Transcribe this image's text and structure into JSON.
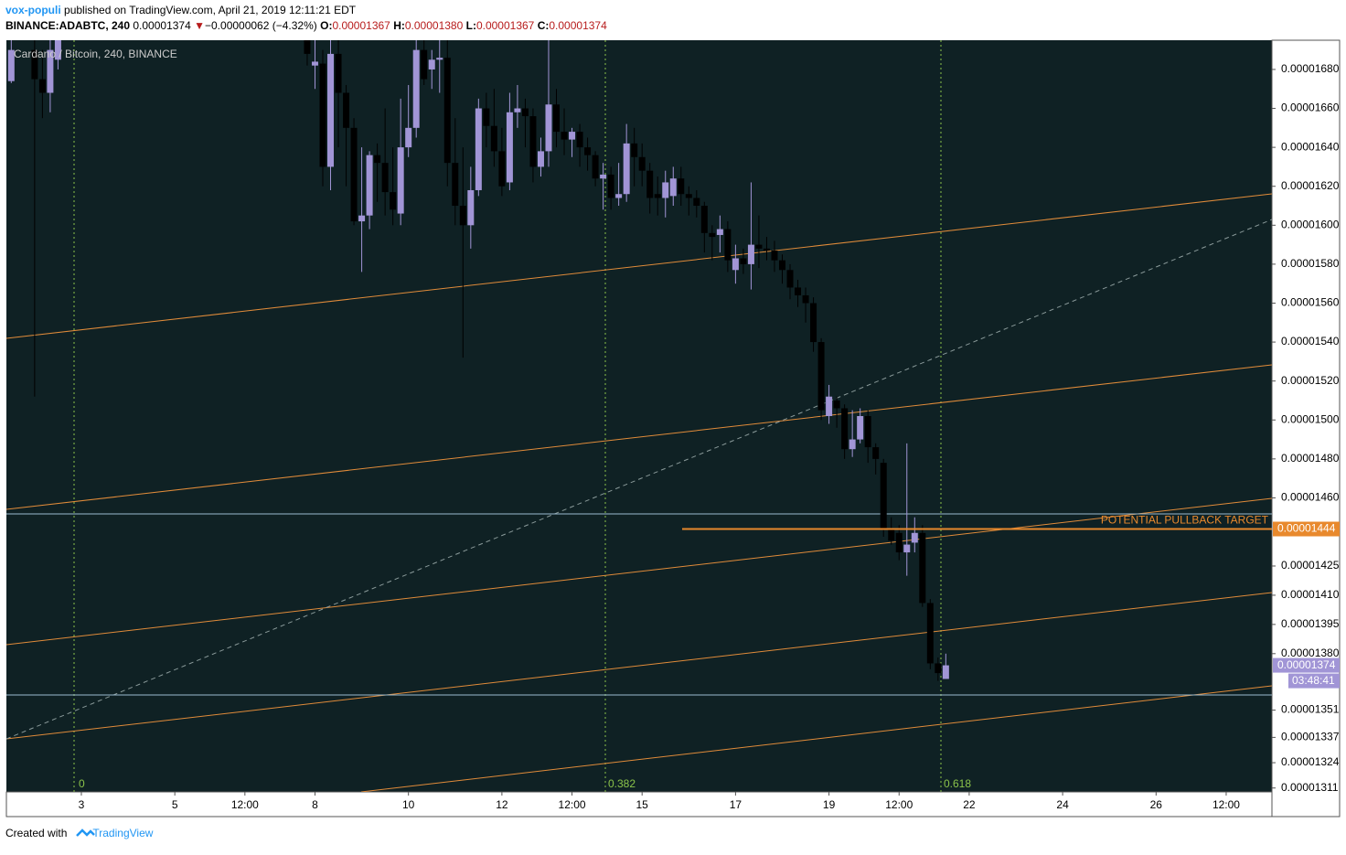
{
  "header": {
    "author": "vox-populi",
    "published": "published on TradingView.com, April 21, 2019 12:11:21 EDT",
    "symbol": "BINANCE:ADABTC, 240",
    "last": "0.00001374",
    "arrow": "▼",
    "change": "−0.00000062 (−4.32%)",
    "ohlc": [
      {
        "label": "O:",
        "value": "0.00001367"
      },
      {
        "label": "H:",
        "value": "0.00001380"
      },
      {
        "label": "L:",
        "value": "0.00001367"
      },
      {
        "label": "C:",
        "value": "0.00001374"
      }
    ]
  },
  "footer": {
    "created": "Created with",
    "brand": "TradingView"
  },
  "chart_data": {
    "type": "candlestick",
    "legend": "Cardano / Bitcoin, 240, BINANCE",
    "up_color": "#a195d6",
    "down_color": "#000000",
    "background": "#0f2124",
    "xlim": [
      9.5,
      659.5
    ],
    "xticks": [
      {
        "value": 48,
        "label": "3"
      },
      {
        "value": 96,
        "label": "5"
      },
      {
        "value": 132,
        "label": "12:00"
      },
      {
        "value": 168,
        "label": "8"
      },
      {
        "value": 216,
        "label": "10"
      },
      {
        "value": 264,
        "label": "12"
      },
      {
        "value": 300,
        "label": "12:00"
      },
      {
        "value": 336,
        "label": "15"
      },
      {
        "value": 384,
        "label": "17"
      },
      {
        "value": 432,
        "label": "19"
      },
      {
        "value": 468,
        "label": "12:00"
      },
      {
        "value": 504,
        "label": "22"
      },
      {
        "value": 552,
        "label": "24"
      },
      {
        "value": 600,
        "label": "26"
      },
      {
        "value": 636,
        "label": "12:00"
      }
    ],
    "ylim": [
      1.309e-05,
      1.695e-05
    ],
    "yticks": [
      {
        "value": 1.68e-05,
        "label": "0.00001680"
      },
      {
        "value": 1.66e-05,
        "label": "0.00001660"
      },
      {
        "value": 1.64e-05,
        "label": "0.00001640"
      },
      {
        "value": 1.62e-05,
        "label": "0.00001620"
      },
      {
        "value": 1.6e-05,
        "label": "0.00001600"
      },
      {
        "value": 1.58e-05,
        "label": "0.00001580"
      },
      {
        "value": 1.56e-05,
        "label": "0.00001560"
      },
      {
        "value": 1.54e-05,
        "label": "0.00001540"
      },
      {
        "value": 1.52e-05,
        "label": "0.00001520"
      },
      {
        "value": 1.5e-05,
        "label": "0.00001500"
      },
      {
        "value": 1.48e-05,
        "label": "0.00001480"
      },
      {
        "value": 1.46e-05,
        "label": "0.00001460"
      },
      {
        "value": 1.425e-05,
        "label": "0.00001425"
      },
      {
        "value": 1.41e-05,
        "label": "0.00001410"
      },
      {
        "value": 1.395e-05,
        "label": "0.00001395"
      },
      {
        "value": 1.38e-05,
        "label": "0.00001380"
      },
      {
        "value": 1.351e-05,
        "label": "0.00001351"
      },
      {
        "value": 1.337e-05,
        "label": "0.00001337"
      },
      {
        "value": 1.324e-05,
        "label": "0.00001324"
      },
      {
        "value": 1.311e-05,
        "label": "0.00001311"
      }
    ],
    "x": [
      12,
      24,
      28,
      32,
      36,
      164,
      168,
      172,
      176,
      180,
      184,
      188,
      192,
      196,
      200,
      204,
      208,
      212,
      216,
      220,
      224,
      228,
      232,
      236,
      240,
      244,
      248,
      252,
      256,
      260,
      264,
      268,
      272,
      276,
      280,
      284,
      288,
      292,
      296,
      300,
      304,
      308,
      312,
      316,
      320,
      324,
      328,
      332,
      336,
      340,
      344,
      348,
      352,
      356,
      360,
      364,
      368,
      372,
      376,
      380,
      384,
      388,
      392,
      396,
      400,
      404,
      408,
      412,
      416,
      420,
      424,
      428,
      432,
      436,
      440,
      444,
      448,
      452,
      456,
      460,
      464,
      468,
      472,
      476,
      480,
      484,
      488,
      492
    ],
    "open": [
      1.674e-05,
      1.69e-05,
      1.675e-05,
      1.668e-05,
      1.685e-05,
      1.695e-05,
      1.682e-05,
      1.683e-05,
      1.63e-05,
      1.688e-05,
      1.668e-05,
      1.65e-05,
      1.602e-05,
      1.605e-05,
      1.636e-05,
      1.632e-05,
      1.617e-05,
      1.606e-05,
      1.64e-05,
      1.65e-05,
      1.69e-05,
      1.68e-05,
      1.685e-05,
      1.686e-05,
      1.632e-05,
      1.61e-05,
      1.6e-05,
      1.618e-05,
      1.66e-05,
      1.651e-05,
      1.638e-05,
      1.622e-05,
      1.658e-05,
      1.66e-05,
      1.656e-05,
      1.63e-05,
      1.638e-05,
      1.662e-05,
      1.648e-05,
      1.644e-05,
      1.648e-05,
      1.64e-05,
      1.636e-05,
      1.624e-05,
      1.626e-05,
      1.614e-05,
      1.616e-05,
      1.642e-05,
      1.635e-05,
      1.628e-05,
      1.616e-05,
      1.614e-05,
      1.615e-05,
      1.624e-05,
      1.616e-05,
      1.614e-05,
      1.61e-05,
      1.596e-05,
      1.595e-05,
      1.598e-05,
      1.577e-05,
      1.583e-05,
      1.58e-05,
      1.59e-05,
      1.588e-05,
      1.587e-05,
      1.582e-05,
      1.577e-05,
      1.568e-05,
      1.564e-05,
      1.56e-05,
      1.54e-05,
      1.502e-05,
      1.51e-05,
      1.506e-05,
      1.485e-05,
      1.49e-05,
      1.502e-05,
      1.486e-05,
      1.478e-05,
      1.444e-05,
      1.442e-05,
      1.432e-05,
      1.437e-05,
      1.442e-05,
      1.406e-05,
      1.375e-05,
      1.367e-05
    ],
    "high": [
      1.695e-05,
      1.695e-05,
      1.69e-05,
      1.695e-05,
      1.695e-05,
      1.695e-05,
      1.695e-05,
      1.69e-05,
      1.695e-05,
      1.695e-05,
      1.672e-05,
      1.655e-05,
      1.64e-05,
      1.638e-05,
      1.642e-05,
      1.66e-05,
      1.64e-05,
      1.665e-05,
      1.672e-05,
      1.695e-05,
      1.695e-05,
      1.69e-05,
      1.695e-05,
      1.695e-05,
      1.655e-05,
      1.64e-05,
      1.63e-05,
      1.665e-05,
      1.668e-05,
      1.67e-05,
      1.65e-05,
      1.668e-05,
      1.672e-05,
      1.665e-05,
      1.66e-05,
      1.645e-05,
      1.695e-05,
      1.67e-05,
      1.66e-05,
      1.65e-05,
      1.652e-05,
      1.645e-05,
      1.638e-05,
      1.632e-05,
      1.63e-05,
      1.632e-05,
      1.652e-05,
      1.65e-05,
      1.642e-05,
      1.632e-05,
      1.625e-05,
      1.628e-05,
      1.63e-05,
      1.63e-05,
      1.62e-05,
      1.618e-05,
      1.612e-05,
      1.6e-05,
      1.605e-05,
      1.602e-05,
      1.59e-05,
      1.588e-05,
      1.622e-05,
      1.605e-05,
      1.594e-05,
      1.592e-05,
      1.585e-05,
      1.58e-05,
      1.572e-05,
      1.568e-05,
      1.563e-05,
      1.542e-05,
      1.518e-05,
      1.512e-05,
      1.508e-05,
      1.505e-05,
      1.506e-05,
      1.505e-05,
      1.488e-05,
      1.48e-05,
      1.45e-05,
      1.446e-05,
      1.488e-05,
      1.45e-05,
      1.446e-05,
      1.408e-05,
      1.378e-05,
      1.38e-05
    ],
    "low": [
      1.673e-05,
      1.512e-05,
      1.655e-05,
      1.658e-05,
      1.68e-05,
      1.682e-05,
      1.67e-05,
      1.62e-05,
      1.618e-05,
      1.64e-05,
      1.62e-05,
      1.6e-05,
      1.576e-05,
      1.598e-05,
      1.612e-05,
      1.605e-05,
      1.6e-05,
      1.6e-05,
      1.635e-05,
      1.645e-05,
      1.672e-05,
      1.67e-05,
      1.668e-05,
      1.62e-05,
      1.6e-05,
      1.532e-05,
      1.588e-05,
      1.615e-05,
      1.64e-05,
      1.63e-05,
      1.615e-05,
      1.618e-05,
      1.65e-05,
      1.64e-05,
      1.622e-05,
      1.625e-05,
      1.63e-05,
      1.64e-05,
      1.636e-05,
      1.635e-05,
      1.63e-05,
      1.628e-05,
      1.62e-05,
      1.608e-05,
      1.608e-05,
      1.61e-05,
      1.612e-05,
      1.62e-05,
      1.62e-05,
      1.606e-05,
      1.605e-05,
      1.604e-05,
      1.61e-05,
      1.61e-05,
      1.605e-05,
      1.604e-05,
      1.586e-05,
      1.582e-05,
      1.586e-05,
      1.576e-05,
      1.57e-05,
      1.575e-05,
      1.567e-05,
      1.578e-05,
      1.582e-05,
      1.576e-05,
      1.57e-05,
      1.562e-05,
      1.558e-05,
      1.55e-05,
      1.535e-05,
      1.5e-05,
      1.498e-05,
      1.496e-05,
      1.48e-05,
      1.481e-05,
      1.488e-05,
      1.478e-05,
      1.472e-05,
      1.44e-05,
      1.436e-05,
      1.428e-05,
      1.42e-05,
      1.432e-05,
      1.404e-05,
      1.372e-05,
      1.366e-05,
      1.367e-05
    ],
    "close": [
      1.69e-05,
      1.675e-05,
      1.668e-05,
      1.69e-05,
      1.695e-05,
      1.688e-05,
      1.684e-05,
      1.63e-05,
      1.688e-05,
      1.668e-05,
      1.65e-05,
      1.602e-05,
      1.605e-05,
      1.636e-05,
      1.632e-05,
      1.617e-05,
      1.608e-05,
      1.64e-05,
      1.65e-05,
      1.69e-05,
      1.675e-05,
      1.685e-05,
      1.686e-05,
      1.632e-05,
      1.61e-05,
      1.6e-05,
      1.618e-05,
      1.66e-05,
      1.651e-05,
      1.638e-05,
      1.62e-05,
      1.658e-05,
      1.66e-05,
      1.656e-05,
      1.63e-05,
      1.638e-05,
      1.662e-05,
      1.648e-05,
      1.644e-05,
      1.648e-05,
      1.64e-05,
      1.636e-05,
      1.624e-05,
      1.626e-05,
      1.614e-05,
      1.616e-05,
      1.642e-05,
      1.635e-05,
      1.628e-05,
      1.614e-05,
      1.614e-05,
      1.622e-05,
      1.624e-05,
      1.616e-05,
      1.614e-05,
      1.61e-05,
      1.596e-05,
      1.594e-05,
      1.598e-05,
      1.582e-05,
      1.583e-05,
      1.58e-05,
      1.59e-05,
      1.588e-05,
      1.587e-05,
      1.582e-05,
      1.577e-05,
      1.568e-05,
      1.564e-05,
      1.56e-05,
      1.54e-05,
      1.505e-05,
      1.512e-05,
      1.506e-05,
      1.485e-05,
      1.49e-05,
      1.502e-05,
      1.486e-05,
      1.48e-05,
      1.444e-05,
      1.438e-05,
      1.432e-05,
      1.436e-05,
      1.442e-05,
      1.406e-05,
      1.375e-05,
      1.37e-05,
      1.374e-05
    ],
    "target": {
      "text": "POTENTIAL PULLBACK TARGET",
      "value": 1.444e-05,
      "label": "0.00001444",
      "color": "#e8892d"
    },
    "last_price": {
      "value": 1.374e-05,
      "label": "0.00001374",
      "countdown": "03:48:41",
      "color": "#a195d6"
    },
    "fib_labels": [
      "0",
      "0.382",
      "0.618"
    ]
  }
}
